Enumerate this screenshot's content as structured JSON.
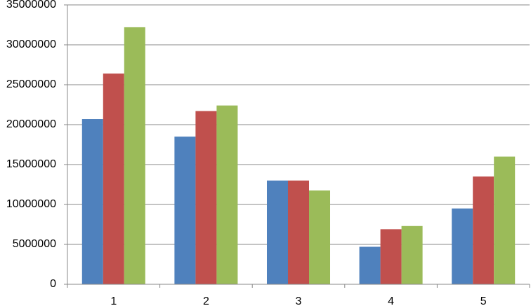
{
  "chart_data": {
    "type": "bar",
    "categories": [
      "1",
      "2",
      "3",
      "4",
      "5"
    ],
    "series": [
      {
        "color": "#4f81bd",
        "values": [
          20700000,
          18500000,
          13000000,
          4700000,
          9500000
        ]
      },
      {
        "color": "#c0504d",
        "values": [
          26400000,
          21700000,
          13000000,
          6900000,
          13500000
        ]
      },
      {
        "color": "#9bbb59",
        "values": [
          32200000,
          22400000,
          11750000,
          7300000,
          16000000
        ]
      }
    ],
    "ylim": [
      0,
      35000000
    ],
    "yticks": [
      0,
      5000000,
      10000000,
      15000000,
      20000000,
      25000000,
      30000000,
      35000000
    ],
    "grid": true
  }
}
